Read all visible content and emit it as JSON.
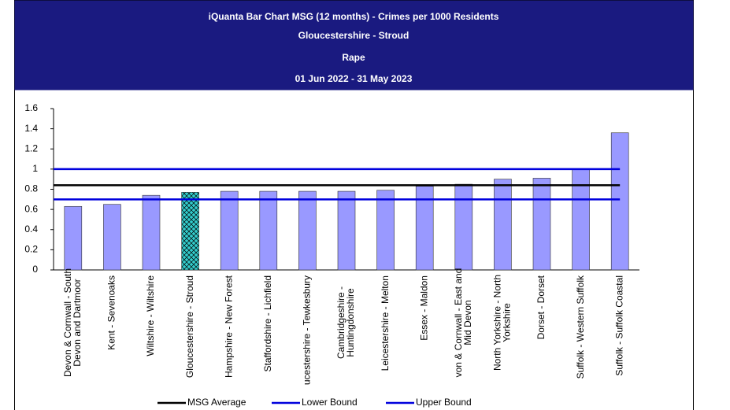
{
  "chart_data": {
    "type": "bar",
    "title": [
      "iQuanta Bar Chart MSG (12 months) - Crimes per 1000 Residents",
      "Gloucestershire - Stroud",
      "Rape",
      "01 Jun 2022 - 31 May 2023"
    ],
    "categories": [
      [
        "Devon & Cornwall - South",
        "Devon and Dartmoor"
      ],
      [
        "Kent - Sevenoaks"
      ],
      [
        "Wiltshire - Wiltshire"
      ],
      [
        "Gloucestershire - Stroud"
      ],
      [
        "Hampshire - New Forest"
      ],
      [
        "Staffordshire - Lichfield"
      ],
      [
        "ucestershire - Tewkesbury"
      ],
      [
        "Cambridgeshire -",
        "Huntingdonshire"
      ],
      [
        "Leicestershire - Melton"
      ],
      [
        "Essex - Maldon"
      ],
      [
        "von & Cornwall - East and",
        "Mid Devon"
      ],
      [
        "North Yorkshire - North",
        "Yorkshire"
      ],
      [
        "Dorset - Dorset"
      ],
      [
        "Suffolk - Western Suffolk"
      ],
      [
        "Suffolk - Suffolk Coastal"
      ]
    ],
    "values": [
      0.63,
      0.65,
      0.74,
      0.77,
      0.78,
      0.78,
      0.78,
      0.78,
      0.79,
      0.83,
      0.85,
      0.9,
      0.91,
      1.0,
      1.36
    ],
    "color": "#9999ff",
    "highlight_index": 3,
    "highlight_color": "#33cccc",
    "lines": [
      {
        "name": "MSG Average",
        "color": "#000000",
        "value": 0.84
      },
      {
        "name": "Lower Bound",
        "color": "#0000dd",
        "value": 0.7
      },
      {
        "name": "Upper Bound",
        "color": "#0000dd",
        "value": 1.0
      }
    ],
    "ylim": [
      0,
      1.6
    ],
    "yticks": [
      0,
      0.2,
      0.4,
      0.6,
      0.8,
      1,
      1.2,
      1.4,
      1.6
    ]
  }
}
